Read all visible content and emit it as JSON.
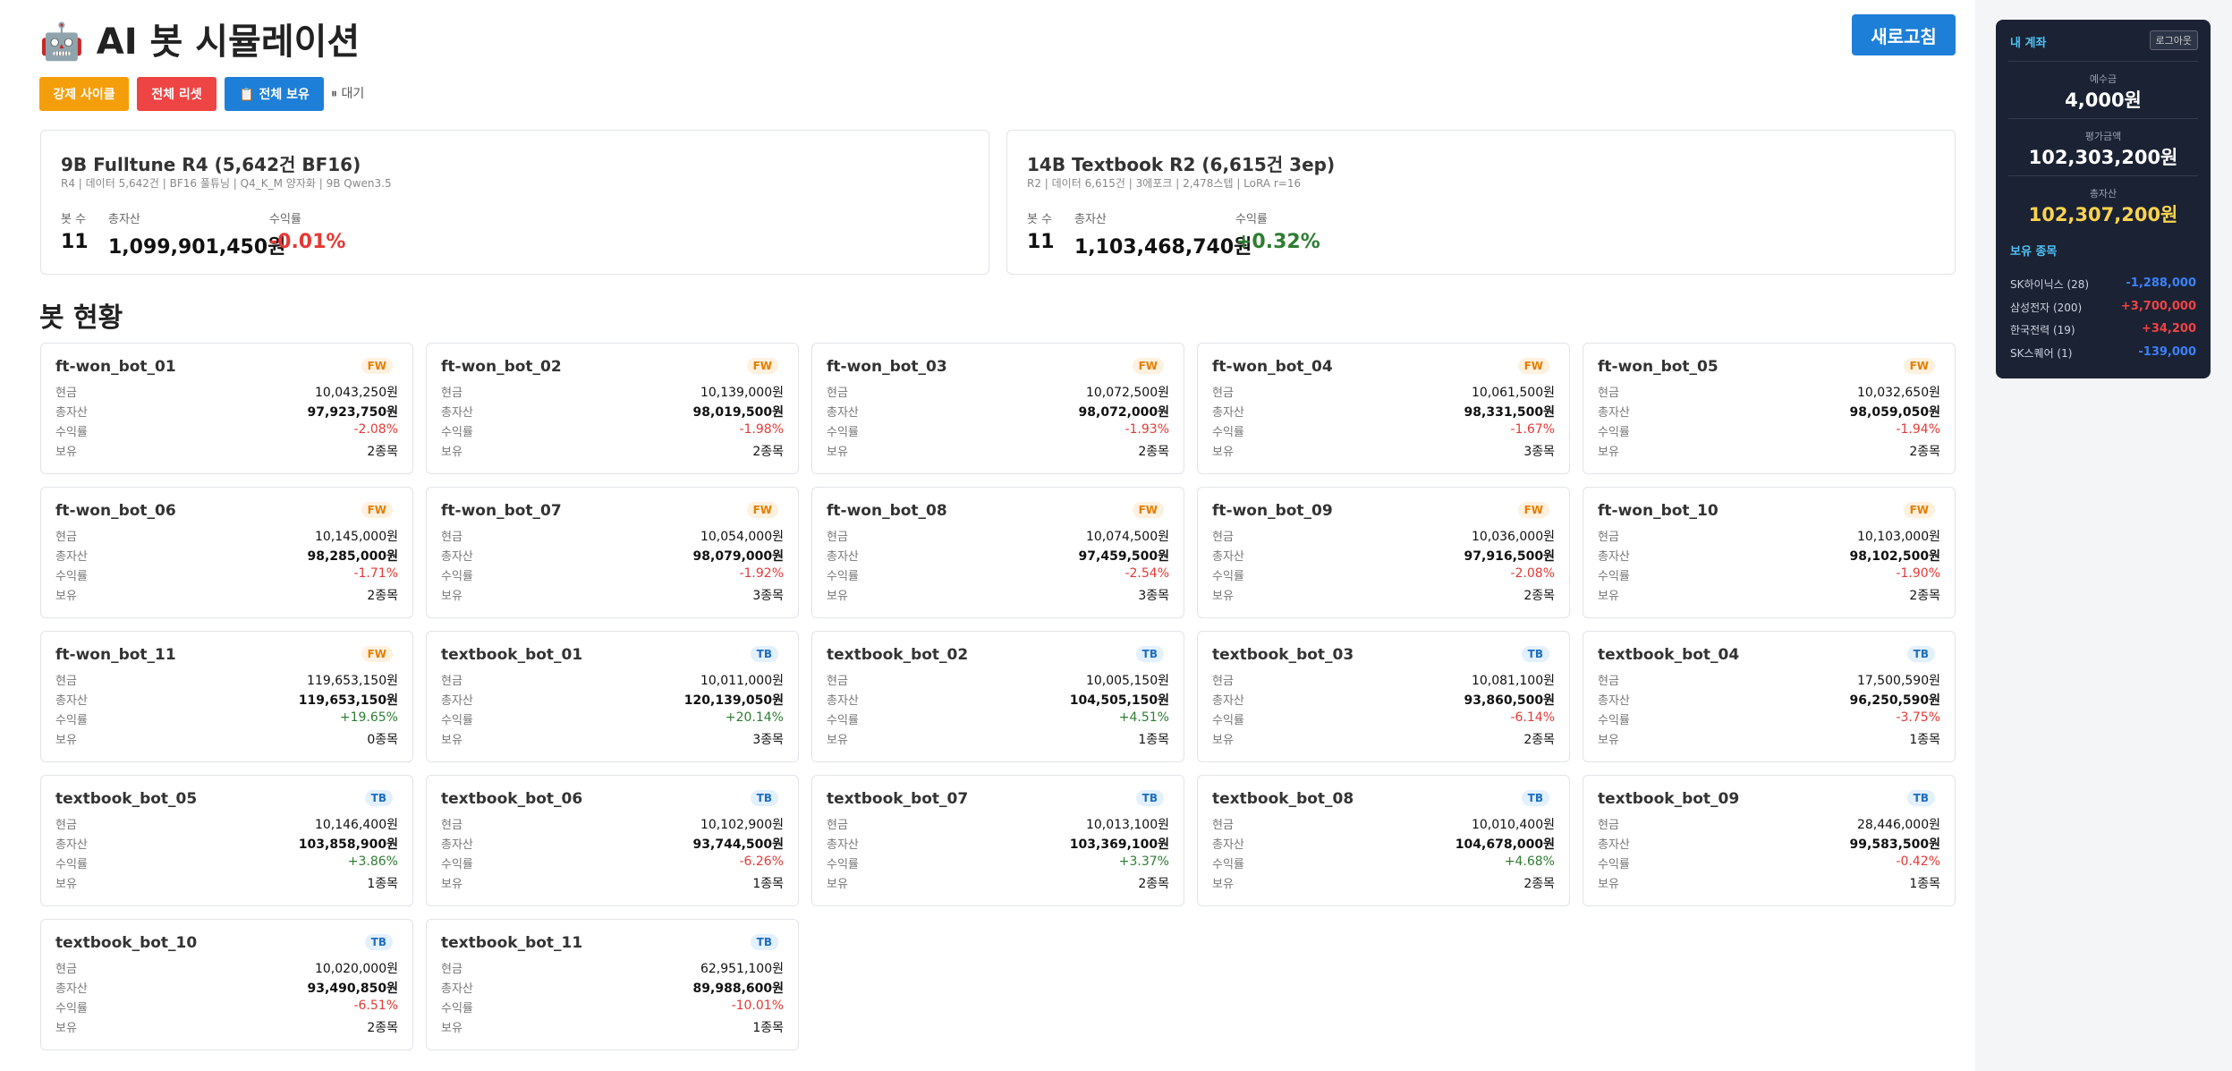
{
  "header": {
    "title": "🤖 AI 봇 시뮬레이션",
    "refresh": "새로고침"
  },
  "actions": {
    "buttons": [
      "강제 사이클",
      "전체 리셋",
      "📋 전체 보유"
    ],
    "status": "⏸ 대기"
  },
  "summary_labels": [
    "봇 수",
    "총자산",
    "수익률"
  ],
  "models": [
    {
      "title": "9B Fulltune R4 (5,642건 BF16)",
      "subtitle": "R4 | 데이터 5,642건 | BF16 풀튜닝 | Q4_K_M 양자화 | 9B Qwen3.5",
      "bots": "11",
      "total": "1,099,901,450원",
      "return": "-0.01%"
    },
    {
      "title": "14B Textbook R2 (6,615건 3ep)",
      "subtitle": "R2 | 데이터 6,615건 | 3에포크 | 2,478스텝 | LoRA r=16",
      "bots": "11",
      "total": "1,103,468,740원",
      "return": "+0.32%"
    }
  ],
  "section_title": "봇 현황",
  "bot_labels": [
    "현금",
    "총자산",
    "수익률",
    "보유"
  ],
  "bots": [
    [
      "ft-won_bot_01",
      "FW",
      "10,043,250원",
      "97,923,750원",
      "-2.08%",
      "2종목"
    ],
    [
      "ft-won_bot_02",
      "FW",
      "10,139,000원",
      "98,019,500원",
      "-1.98%",
      "2종목"
    ],
    [
      "ft-won_bot_03",
      "FW",
      "10,072,500원",
      "98,072,000원",
      "-1.93%",
      "2종목"
    ],
    [
      "ft-won_bot_04",
      "FW",
      "10,061,500원",
      "98,331,500원",
      "-1.67%",
      "3종목"
    ],
    [
      "ft-won_bot_05",
      "FW",
      "10,032,650원",
      "98,059,050원",
      "-1.94%",
      "2종목"
    ],
    [
      "ft-won_bot_06",
      "FW",
      "10,145,000원",
      "98,285,000원",
      "-1.71%",
      "2종목"
    ],
    [
      "ft-won_bot_07",
      "FW",
      "10,054,000원",
      "98,079,000원",
      "-1.92%",
      "3종목"
    ],
    [
      "ft-won_bot_08",
      "FW",
      "10,074,500원",
      "97,459,500원",
      "-2.54%",
      "3종목"
    ],
    [
      "ft-won_bot_09",
      "FW",
      "10,036,000원",
      "97,916,500원",
      "-2.08%",
      "2종목"
    ],
    [
      "ft-won_bot_10",
      "FW",
      "10,103,000원",
      "98,102,500원",
      "-1.90%",
      "2종목"
    ],
    [
      "ft-won_bot_11",
      "FW",
      "119,653,150원",
      "119,653,150원",
      "+19.65%",
      "0종목"
    ],
    [
      "textbook_bot_01",
      "TB",
      "10,011,000원",
      "120,139,050원",
      "+20.14%",
      "3종목"
    ],
    [
      "textbook_bot_02",
      "TB",
      "10,005,150원",
      "104,505,150원",
      "+4.51%",
      "1종목"
    ],
    [
      "textbook_bot_03",
      "TB",
      "10,081,100원",
      "93,860,500원",
      "-6.14%",
      "2종목"
    ],
    [
      "textbook_bot_04",
      "TB",
      "17,500,590원",
      "96,250,590원",
      "-3.75%",
      "1종목"
    ],
    [
      "textbook_bot_05",
      "TB",
      "10,146,400원",
      "103,858,900원",
      "+3.86%",
      "1종목"
    ],
    [
      "textbook_bot_06",
      "TB",
      "10,102,900원",
      "93,744,500원",
      "-6.26%",
      "1종목"
    ],
    [
      "textbook_bot_07",
      "TB",
      "10,013,100원",
      "103,369,100원",
      "+3.37%",
      "2종목"
    ],
    [
      "textbook_bot_08",
      "TB",
      "10,010,400원",
      "104,678,000원",
      "+4.68%",
      "2종목"
    ],
    [
      "textbook_bot_09",
      "TB",
      "28,446,000원",
      "99,583,500원",
      "-0.42%",
      "1종목"
    ],
    [
      "textbook_bot_10",
      "TB",
      "10,020,000원",
      "93,490,850원",
      "-6.51%",
      "2종목"
    ],
    [
      "textbook_bot_11",
      "TB",
      "62,951,100원",
      "89,988,600원",
      "-10.01%",
      "1종목"
    ]
  ],
  "account": {
    "title": "내 계좌",
    "logout": "로그아웃",
    "items": [
      [
        "예수금",
        "4,000원"
      ],
      [
        "평가금액",
        "102,303,200원"
      ],
      [
        "총자산",
        "102,307,200원"
      ]
    ],
    "holdings_title": "보유 종목",
    "holdings": [
      [
        "SK하이닉스 (28)",
        "-1,288,000"
      ],
      [
        "삼성전자 (200)",
        "+3,700,000"
      ],
      [
        "한국전력 (19)",
        "+34,200"
      ],
      [
        "SK스퀘어 (1)",
        "-139,000"
      ]
    ]
  }
}
